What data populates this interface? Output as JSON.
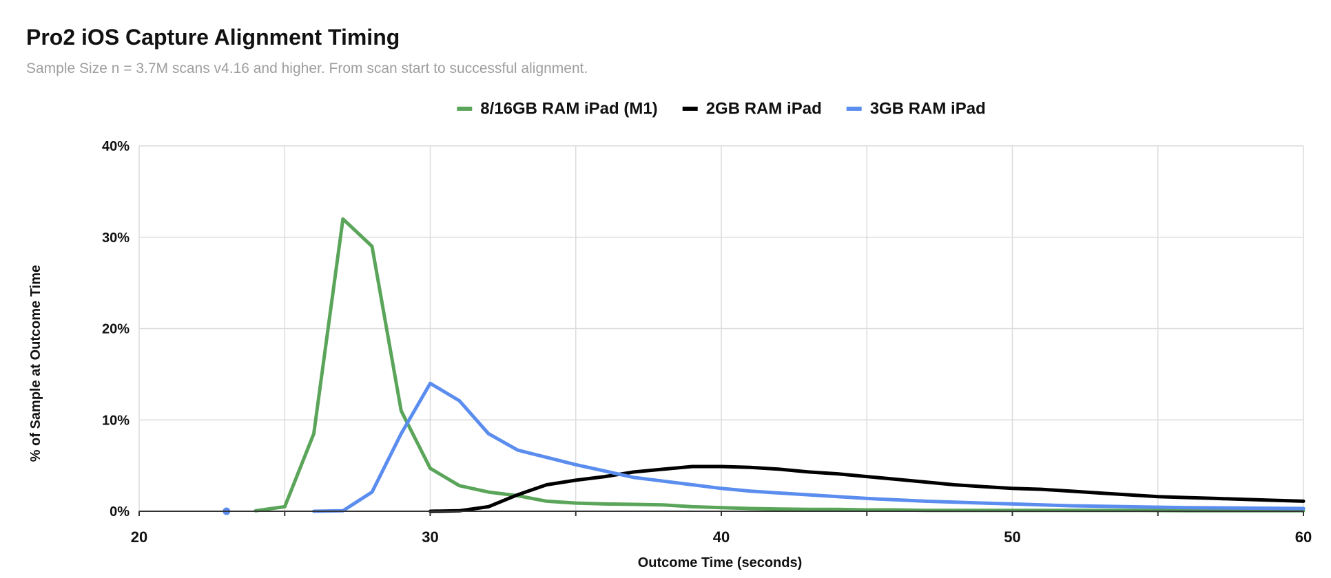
{
  "chart_data": {
    "type": "line",
    "title": "Pro2 iOS Capture Alignment Timing",
    "subtitle": "Sample Size n = 3.7M scans v4.16 and higher. From scan start to successful alignment.",
    "xlabel": "Outcome Time (seconds)",
    "ylabel": "% of Sample at Outcome Time",
    "xlim": [
      20,
      60
    ],
    "ylim": [
      0,
      40
    ],
    "x_ticks": [
      20,
      30,
      40,
      50,
      60
    ],
    "x_tick_labels": [
      "20",
      "30",
      "40",
      "50",
      "60"
    ],
    "y_ticks": [
      0,
      10,
      20,
      30,
      40
    ],
    "y_tick_labels": [
      "0%",
      "10%",
      "20%",
      "30%",
      "40%"
    ],
    "x_grid_step": 5,
    "grid": true,
    "legend_position": "top-center",
    "series": [
      {
        "name": "8/16GB RAM iPad (M1)",
        "color": "#5aa55a",
        "points": [
          [
            24,
            0.05
          ],
          [
            25,
            0.5
          ],
          [
            26,
            8.5
          ],
          [
            27,
            32
          ],
          [
            28,
            29
          ],
          [
            29,
            11
          ],
          [
            30,
            4.7
          ],
          [
            31,
            2.8
          ],
          [
            32,
            2.1
          ],
          [
            33,
            1.7
          ],
          [
            34,
            1.1
          ],
          [
            35,
            0.9
          ],
          [
            36,
            0.8
          ],
          [
            37,
            0.75
          ],
          [
            38,
            0.7
          ],
          [
            39,
            0.5
          ],
          [
            40,
            0.4
          ],
          [
            41,
            0.3
          ],
          [
            42,
            0.25
          ],
          [
            43,
            0.2
          ],
          [
            44,
            0.2
          ],
          [
            45,
            0.15
          ],
          [
            46,
            0.15
          ],
          [
            47,
            0.1
          ],
          [
            48,
            0.1
          ],
          [
            49,
            0.1
          ],
          [
            50,
            0.1
          ],
          [
            52,
            0.1
          ],
          [
            54,
            0.1
          ],
          [
            56,
            0.05
          ],
          [
            58,
            0.05
          ],
          [
            60,
            0.05
          ]
        ]
      },
      {
        "name": "2GB RAM iPad",
        "color": "#000000",
        "points": [
          [
            30,
            0
          ],
          [
            31,
            0.05
          ],
          [
            32,
            0.5
          ],
          [
            33,
            1.8
          ],
          [
            34,
            2.9
          ],
          [
            35,
            3.4
          ],
          [
            36,
            3.8
          ],
          [
            37,
            4.3
          ],
          [
            38,
            4.6
          ],
          [
            39,
            4.9
          ],
          [
            40,
            4.9
          ],
          [
            41,
            4.8
          ],
          [
            42,
            4.6
          ],
          [
            43,
            4.3
          ],
          [
            44,
            4.1
          ],
          [
            45,
            3.8
          ],
          [
            46,
            3.5
          ],
          [
            47,
            3.2
          ],
          [
            48,
            2.9
          ],
          [
            49,
            2.7
          ],
          [
            50,
            2.5
          ],
          [
            51,
            2.4
          ],
          [
            52,
            2.2
          ],
          [
            53,
            2.0
          ],
          [
            54,
            1.8
          ],
          [
            55,
            1.6
          ],
          [
            56,
            1.5
          ],
          [
            57,
            1.4
          ],
          [
            58,
            1.3
          ],
          [
            59,
            1.2
          ],
          [
            60,
            1.1
          ]
        ]
      },
      {
        "name": "3GB RAM iPad",
        "color": "#5b8def",
        "points": [
          [
            26,
            0
          ],
          [
            27,
            0.05
          ],
          [
            28,
            2.1
          ],
          [
            29,
            8.5
          ],
          [
            30,
            14
          ],
          [
            31,
            12.1
          ],
          [
            32,
            8.5
          ],
          [
            33,
            6.7
          ],
          [
            34,
            5.9
          ],
          [
            35,
            5.1
          ],
          [
            36,
            4.4
          ],
          [
            37,
            3.7
          ],
          [
            38,
            3.3
          ],
          [
            39,
            2.9
          ],
          [
            40,
            2.5
          ],
          [
            41,
            2.2
          ],
          [
            42,
            2.0
          ],
          [
            43,
            1.8
          ],
          [
            44,
            1.6
          ],
          [
            45,
            1.4
          ],
          [
            46,
            1.25
          ],
          [
            47,
            1.1
          ],
          [
            48,
            1.0
          ],
          [
            49,
            0.9
          ],
          [
            50,
            0.8
          ],
          [
            52,
            0.6
          ],
          [
            54,
            0.5
          ],
          [
            56,
            0.4
          ],
          [
            58,
            0.35
          ],
          [
            60,
            0.3
          ]
        ],
        "isolated_points": [
          [
            23,
            0
          ]
        ]
      }
    ]
  }
}
